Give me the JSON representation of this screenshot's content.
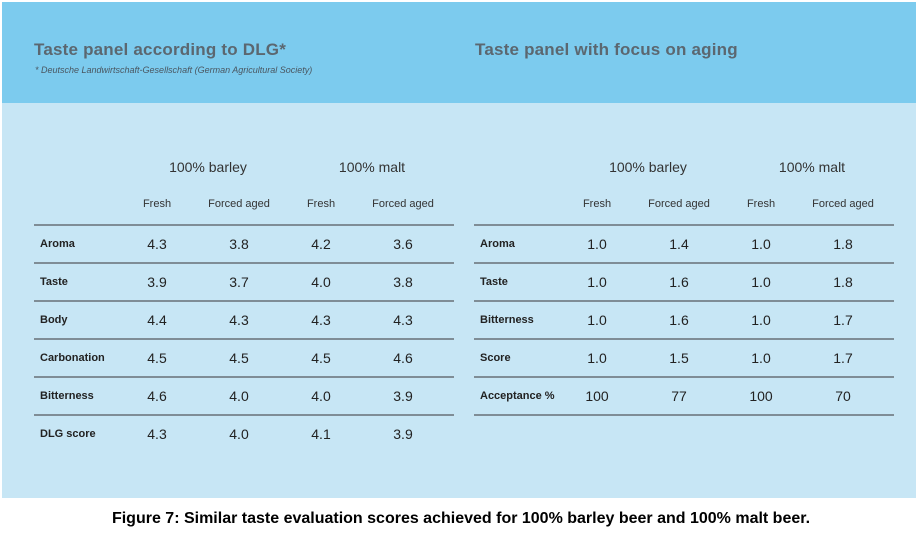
{
  "figure": {
    "caption": "Figure 7: Similar taste evaluation scores achieved for 100% barley beer and 100% malt beer."
  },
  "chart_data": [
    {
      "type": "table",
      "title": "Taste panel according to DLG*",
      "footnote": "* Deutsche Landwirtschaft-Gesellschaft (German Agricultural Society)",
      "column_groups": [
        "100% barley",
        "100% malt"
      ],
      "subcolumns": [
        "Fresh",
        "Forced aged",
        "Fresh",
        "Forced aged"
      ],
      "rows": [
        {
          "label": "Aroma",
          "values": [
            "4.3",
            "3.8",
            "4.2",
            "3.6"
          ]
        },
        {
          "label": "Taste",
          "values": [
            "3.9",
            "3.7",
            "4.0",
            "3.8"
          ]
        },
        {
          "label": "Body",
          "values": [
            "4.4",
            "4.3",
            "4.3",
            "4.3"
          ]
        },
        {
          "label": "Carbonation",
          "values": [
            "4.5",
            "4.5",
            "4.5",
            "4.6"
          ]
        },
        {
          "label": "Bitterness",
          "values": [
            "4.6",
            "4.0",
            "4.0",
            "3.9"
          ]
        },
        {
          "label": "DLG score",
          "values": [
            "4.3",
            "4.0",
            "4.1",
            "3.9"
          ]
        }
      ]
    },
    {
      "type": "table",
      "title": "Taste panel with focus on aging",
      "column_groups": [
        "100% barley",
        "100% malt"
      ],
      "subcolumns": [
        "Fresh",
        "Forced aged",
        "Fresh",
        "Forced aged"
      ],
      "rows": [
        {
          "label": "Aroma",
          "values": [
            "1.0",
            "1.4",
            "1.0",
            "1.8"
          ]
        },
        {
          "label": "Taste",
          "values": [
            "1.0",
            "1.6",
            "1.0",
            "1.8"
          ]
        },
        {
          "label": "Bitterness",
          "values": [
            "1.0",
            "1.6",
            "1.0",
            "1.7"
          ]
        },
        {
          "label": "Score",
          "values": [
            "1.0",
            "1.5",
            "1.0",
            "1.7"
          ]
        },
        {
          "label": "Acceptance %",
          "values": [
            "100",
            "77",
            "100",
            "70"
          ]
        }
      ]
    }
  ],
  "colors": {
    "header_band": "#7ccbee",
    "panel_background": "#c7e6f5",
    "title_text": "#5b6770",
    "rule": "#7f8d96"
  }
}
